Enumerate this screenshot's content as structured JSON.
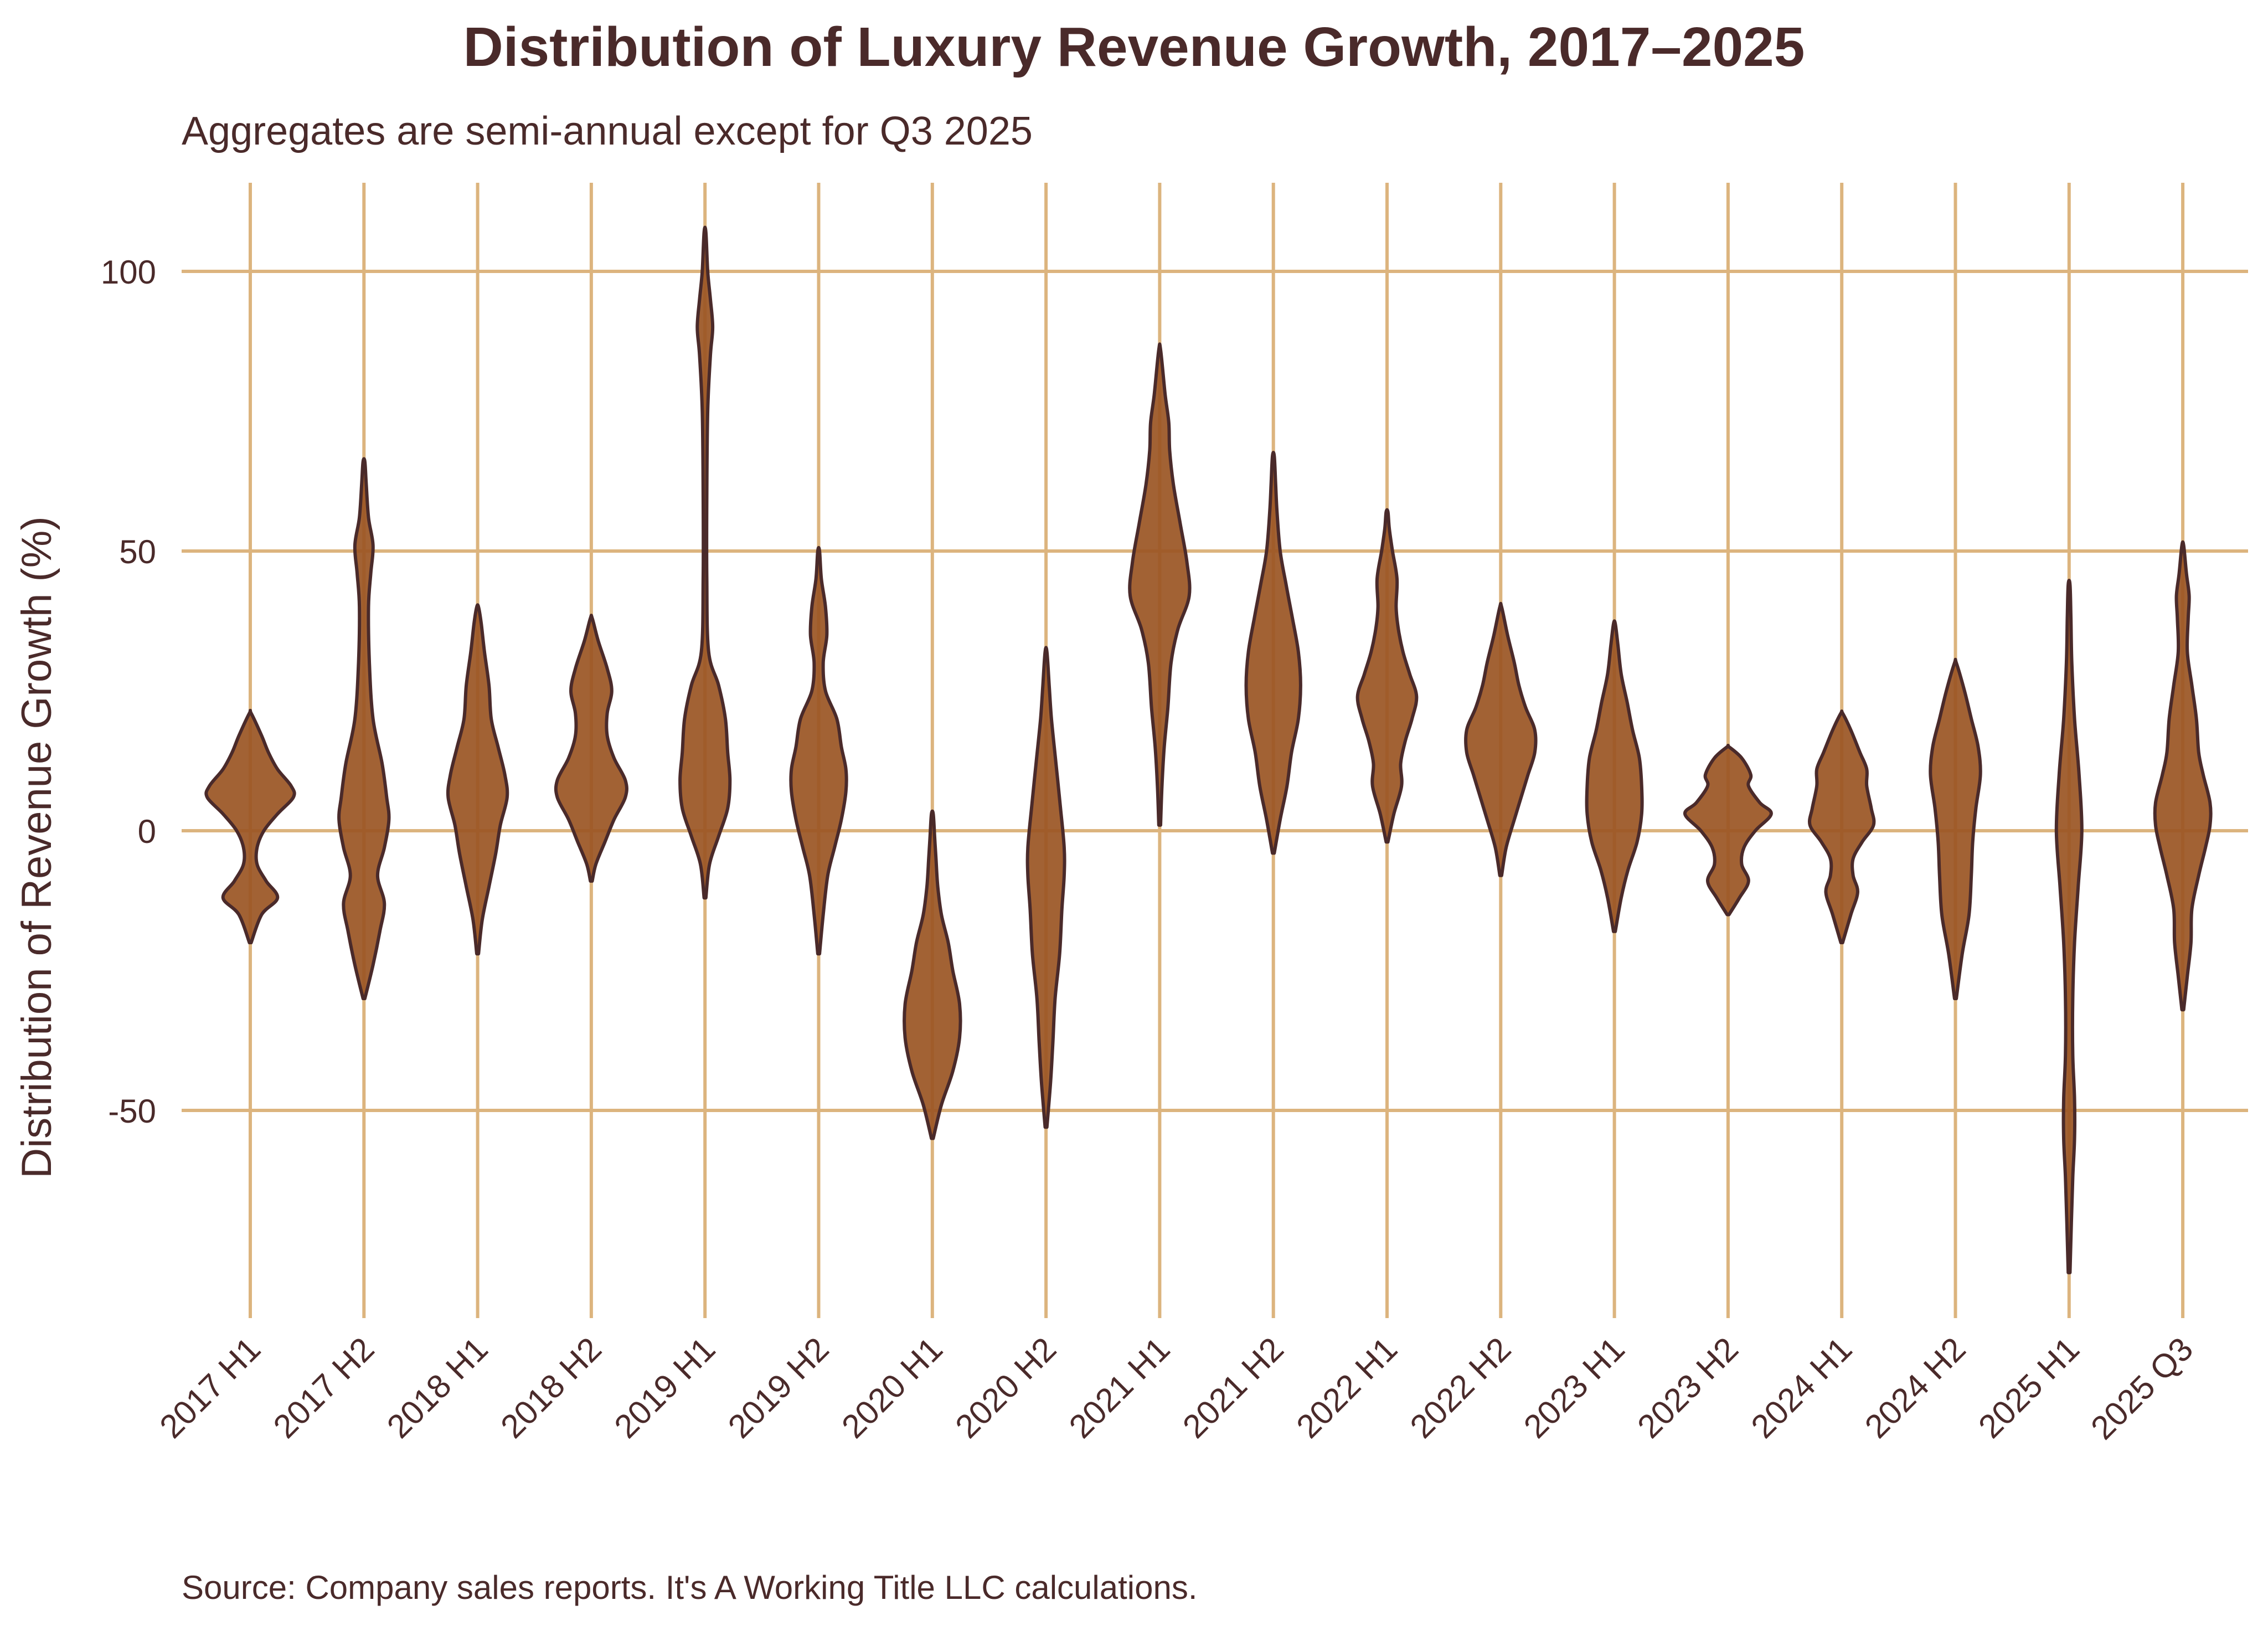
{
  "chart_data": {
    "type": "violin",
    "title": "Distribution of Luxury Revenue Growth, 2017–2025",
    "subtitle": "Aggregates are semi-annual except for Q3 2025",
    "ylabel": "Distribution of Revenue Growth (%)",
    "xlabel": "",
    "source": "Source: Company sales reports. It's A Working Title LLC calculations.",
    "ylim": [
      -85,
      115
    ],
    "yticks": [
      100,
      50,
      0,
      -50
    ],
    "ytick_labels": [
      "100",
      "50",
      "0",
      "-50"
    ],
    "grid": true,
    "legend": "none",
    "colors": {
      "fill": "#9a5523",
      "outline": "#4a2a2a",
      "grid": "#dcb47e",
      "text": "#4a2a2a"
    },
    "categories": [
      "2017 H1",
      "2017 H2",
      "2018 H1",
      "2018 H2",
      "2019 H1",
      "2019 H2",
      "2020 H1",
      "2020 H2",
      "2021 H1",
      "2021 H2",
      "2022 H1",
      "2022 H2",
      "2023 H1",
      "2023 H2",
      "2024 H1",
      "2024 H2",
      "2025 H1",
      "2025 Q3"
    ],
    "series": [
      {
        "category": "2017 H1",
        "min": -20,
        "max": 21,
        "profile": [
          [
            -20,
            0.02
          ],
          [
            -15,
            0.25
          ],
          [
            -12,
            0.6
          ],
          [
            -9,
            0.35
          ],
          [
            -6,
            0.15
          ],
          [
            -3,
            0.15
          ],
          [
            0,
            0.3
          ],
          [
            3,
            0.6
          ],
          [
            6,
            0.95
          ],
          [
            8,
            0.9
          ],
          [
            11,
            0.6
          ],
          [
            14,
            0.4
          ],
          [
            17,
            0.25
          ],
          [
            21,
            0.02
          ]
        ]
      },
      {
        "category": "2017 H2",
        "min": -30,
        "max": 66,
        "profile": [
          [
            -30,
            0.02
          ],
          [
            -24,
            0.2
          ],
          [
            -18,
            0.35
          ],
          [
            -13,
            0.45
          ],
          [
            -8,
            0.3
          ],
          [
            -3,
            0.45
          ],
          [
            2,
            0.55
          ],
          [
            6,
            0.5
          ],
          [
            12,
            0.4
          ],
          [
            20,
            0.2
          ],
          [
            30,
            0.12
          ],
          [
            40,
            0.1
          ],
          [
            46,
            0.15
          ],
          [
            51,
            0.2
          ],
          [
            56,
            0.1
          ],
          [
            62,
            0.05
          ],
          [
            66,
            0.02
          ]
        ]
      },
      {
        "category": "2018 H1",
        "min": -22,
        "max": 40,
        "profile": [
          [
            -22,
            0.02
          ],
          [
            -16,
            0.1
          ],
          [
            -10,
            0.25
          ],
          [
            -4,
            0.4
          ],
          [
            1,
            0.5
          ],
          [
            6,
            0.65
          ],
          [
            10,
            0.6
          ],
          [
            15,
            0.45
          ],
          [
            20,
            0.3
          ],
          [
            26,
            0.25
          ],
          [
            32,
            0.15
          ],
          [
            37,
            0.08
          ],
          [
            40,
            0.02
          ]
        ]
      },
      {
        "category": "2018 H2",
        "min": -9,
        "max": 38,
        "profile": [
          [
            -9,
            0.02
          ],
          [
            -6,
            0.1
          ],
          [
            -2,
            0.3
          ],
          [
            2,
            0.5
          ],
          [
            6,
            0.75
          ],
          [
            9,
            0.75
          ],
          [
            13,
            0.5
          ],
          [
            17,
            0.35
          ],
          [
            21,
            0.35
          ],
          [
            25,
            0.45
          ],
          [
            29,
            0.35
          ],
          [
            34,
            0.15
          ],
          [
            38,
            0.02
          ]
        ]
      },
      {
        "category": "2019 H1",
        "min": -12,
        "max": 107,
        "profile": [
          [
            -12,
            0.02
          ],
          [
            -6,
            0.1
          ],
          [
            -1,
            0.3
          ],
          [
            4,
            0.5
          ],
          [
            9,
            0.55
          ],
          [
            14,
            0.5
          ],
          [
            20,
            0.45
          ],
          [
            26,
            0.3
          ],
          [
            32,
            0.08
          ],
          [
            45,
            0.04
          ],
          [
            60,
            0.04
          ],
          [
            75,
            0.06
          ],
          [
            85,
            0.12
          ],
          [
            90,
            0.17
          ],
          [
            95,
            0.12
          ],
          [
            100,
            0.06
          ],
          [
            107,
            0.02
          ]
        ]
      },
      {
        "category": "2019 H2",
        "min": -22,
        "max": 50,
        "profile": [
          [
            -22,
            0.02
          ],
          [
            -15,
            0.1
          ],
          [
            -8,
            0.2
          ],
          [
            -3,
            0.35
          ],
          [
            2,
            0.5
          ],
          [
            7,
            0.6
          ],
          [
            11,
            0.6
          ],
          [
            15,
            0.5
          ],
          [
            20,
            0.4
          ],
          [
            25,
            0.15
          ],
          [
            30,
            0.1
          ],
          [
            35,
            0.18
          ],
          [
            40,
            0.15
          ],
          [
            45,
            0.06
          ],
          [
            50,
            0.02
          ]
        ]
      },
      {
        "category": "2020 H1",
        "min": -55,
        "max": 3,
        "profile": [
          [
            -55,
            0.02
          ],
          [
            -49,
            0.2
          ],
          [
            -43,
            0.45
          ],
          [
            -37,
            0.6
          ],
          [
            -31,
            0.6
          ],
          [
            -25,
            0.45
          ],
          [
            -20,
            0.35
          ],
          [
            -15,
            0.2
          ],
          [
            -10,
            0.12
          ],
          [
            -5,
            0.08
          ],
          [
            -1,
            0.05
          ],
          [
            3,
            0.02
          ]
        ]
      },
      {
        "category": "2020 H2",
        "min": -53,
        "max": 32,
        "profile": [
          [
            -53,
            0.02
          ],
          [
            -45,
            0.1
          ],
          [
            -38,
            0.15
          ],
          [
            -30,
            0.2
          ],
          [
            -22,
            0.3
          ],
          [
            -14,
            0.35
          ],
          [
            -8,
            0.4
          ],
          [
            -3,
            0.4
          ],
          [
            4,
            0.32
          ],
          [
            12,
            0.22
          ],
          [
            20,
            0.12
          ],
          [
            26,
            0.07
          ],
          [
            32,
            0.02
          ]
        ]
      },
      {
        "category": "2021 H1",
        "min": 1,
        "max": 86,
        "profile": [
          [
            1,
            0.02
          ],
          [
            8,
            0.05
          ],
          [
            15,
            0.1
          ],
          [
            22,
            0.18
          ],
          [
            30,
            0.25
          ],
          [
            36,
            0.4
          ],
          [
            42,
            0.65
          ],
          [
            48,
            0.6
          ],
          [
            55,
            0.45
          ],
          [
            62,
            0.3
          ],
          [
            68,
            0.22
          ],
          [
            73,
            0.2
          ],
          [
            78,
            0.12
          ],
          [
            86,
            0.02
          ]
        ]
      },
      {
        "category": "2021 H2",
        "min": -4,
        "max": 67,
        "profile": [
          [
            -4,
            0.02
          ],
          [
            2,
            0.15
          ],
          [
            8,
            0.3
          ],
          [
            14,
            0.4
          ],
          [
            20,
            0.55
          ],
          [
            26,
            0.6
          ],
          [
            32,
            0.55
          ],
          [
            38,
            0.42
          ],
          [
            44,
            0.28
          ],
          [
            50,
            0.15
          ],
          [
            57,
            0.08
          ],
          [
            62,
            0.05
          ],
          [
            67,
            0.02
          ]
        ]
      },
      {
        "category": "2022 H1",
        "min": -2,
        "max": 57,
        "profile": [
          [
            -2,
            0.02
          ],
          [
            3,
            0.15
          ],
          [
            8,
            0.32
          ],
          [
            12,
            0.3
          ],
          [
            16,
            0.4
          ],
          [
            20,
            0.55
          ],
          [
            24,
            0.65
          ],
          [
            28,
            0.5
          ],
          [
            32,
            0.35
          ],
          [
            36,
            0.25
          ],
          [
            40,
            0.2
          ],
          [
            45,
            0.22
          ],
          [
            50,
            0.12
          ],
          [
            54,
            0.05
          ],
          [
            57,
            0.02
          ]
        ]
      },
      {
        "category": "2022 H2",
        "min": -8,
        "max": 40,
        "profile": [
          [
            -8,
            0.02
          ],
          [
            -3,
            0.12
          ],
          [
            2,
            0.3
          ],
          [
            6,
            0.45
          ],
          [
            10,
            0.6
          ],
          [
            14,
            0.75
          ],
          [
            18,
            0.75
          ],
          [
            22,
            0.55
          ],
          [
            26,
            0.4
          ],
          [
            30,
            0.3
          ],
          [
            35,
            0.15
          ],
          [
            40,
            0.02
          ]
        ]
      },
      {
        "category": "2023 H1",
        "min": -18,
        "max": 37,
        "profile": [
          [
            -18,
            0.02
          ],
          [
            -12,
            0.15
          ],
          [
            -7,
            0.3
          ],
          [
            -2,
            0.5
          ],
          [
            3,
            0.6
          ],
          [
            8,
            0.6
          ],
          [
            13,
            0.55
          ],
          [
            18,
            0.4
          ],
          [
            23,
            0.28
          ],
          [
            28,
            0.15
          ],
          [
            33,
            0.08
          ],
          [
            37,
            0.02
          ]
        ]
      },
      {
        "category": "2023 H2",
        "min": -15,
        "max": 15,
        "profile": [
          [
            -15,
            0.02
          ],
          [
            -12,
            0.25
          ],
          [
            -9,
            0.45
          ],
          [
            -6,
            0.3
          ],
          [
            -3,
            0.35
          ],
          [
            0,
            0.6
          ],
          [
            3,
            0.95
          ],
          [
            5,
            0.7
          ],
          [
            8,
            0.45
          ],
          [
            10,
            0.5
          ],
          [
            13,
            0.3
          ],
          [
            15,
            0.02
          ]
        ]
      },
      {
        "category": "2024 H1",
        "min": -20,
        "max": 21,
        "profile": [
          [
            -20,
            0.02
          ],
          [
            -15,
            0.2
          ],
          [
            -11,
            0.35
          ],
          [
            -8,
            0.25
          ],
          [
            -5,
            0.25
          ],
          [
            -2,
            0.45
          ],
          [
            1,
            0.7
          ],
          [
            4,
            0.65
          ],
          [
            8,
            0.55
          ],
          [
            11,
            0.55
          ],
          [
            14,
            0.4
          ],
          [
            18,
            0.2
          ],
          [
            21,
            0.02
          ]
        ]
      },
      {
        "category": "2024 H2",
        "min": -30,
        "max": 30,
        "profile": [
          [
            -30,
            0.02
          ],
          [
            -22,
            0.15
          ],
          [
            -15,
            0.3
          ],
          [
            -8,
            0.35
          ],
          [
            -2,
            0.38
          ],
          [
            4,
            0.45
          ],
          [
            10,
            0.55
          ],
          [
            15,
            0.5
          ],
          [
            20,
            0.35
          ],
          [
            25,
            0.2
          ],
          [
            30,
            0.02
          ]
        ]
      },
      {
        "category": "2025 H1",
        "min": -79,
        "max": 44,
        "profile": [
          [
            -79,
            0.02
          ],
          [
            -70,
            0.05
          ],
          [
            -62,
            0.08
          ],
          [
            -55,
            0.12
          ],
          [
            -48,
            0.12
          ],
          [
            -40,
            0.08
          ],
          [
            -30,
            0.08
          ],
          [
            -20,
            0.12
          ],
          [
            -10,
            0.2
          ],
          [
            0,
            0.28
          ],
          [
            10,
            0.22
          ],
          [
            20,
            0.12
          ],
          [
            30,
            0.06
          ],
          [
            38,
            0.04
          ],
          [
            44,
            0.02
          ]
        ]
      },
      {
        "category": "2025 Q3",
        "min": -32,
        "max": 51,
        "profile": [
          [
            -32,
            0.02
          ],
          [
            -26,
            0.1
          ],
          [
            -20,
            0.18
          ],
          [
            -14,
            0.2
          ],
          [
            -8,
            0.35
          ],
          [
            -3,
            0.5
          ],
          [
            1,
            0.6
          ],
          [
            5,
            0.6
          ],
          [
            10,
            0.45
          ],
          [
            14,
            0.35
          ],
          [
            20,
            0.3
          ],
          [
            26,
            0.2
          ],
          [
            32,
            0.1
          ],
          [
            38,
            0.12
          ],
          [
            42,
            0.14
          ],
          [
            46,
            0.08
          ],
          [
            51,
            0.02
          ]
        ]
      }
    ]
  }
}
